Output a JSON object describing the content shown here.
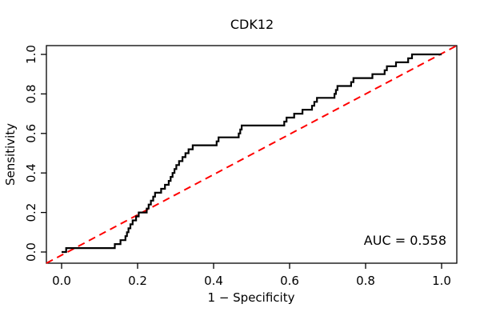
{
  "title": "CDK12",
  "axes": {
    "x": {
      "label": "1 − Specificity",
      "ticks": [
        "0.0",
        "0.2",
        "0.4",
        "0.6",
        "0.8",
        "1.0"
      ],
      "tick_values": [
        0,
        0.2,
        0.4,
        0.6,
        0.8,
        1.0
      ]
    },
    "y": {
      "label": "Sensitivity",
      "ticks": [
        "0.0",
        "0.2",
        "0.4",
        "0.6",
        "0.8",
        "1.0"
      ],
      "tick_values": [
        0,
        0.2,
        0.4,
        0.6,
        0.8,
        1.0
      ]
    }
  },
  "annotation": {
    "auc_label": "AUC = 0.558"
  },
  "colors": {
    "curve": "#000000",
    "diagonal": "#FF0000",
    "box": "#000000",
    "text": "#000000",
    "background": "#FFFFFF"
  },
  "chart_data": {
    "type": "line",
    "subtype": "roc-step-curve",
    "title": "CDK12",
    "xlabel": "1 − Specificity",
    "ylabel": "Sensitivity",
    "xlim": [
      0,
      1
    ],
    "ylim": [
      0,
      1
    ],
    "grid": false,
    "auc": 0.558,
    "diagonal_reference": {
      "from": [
        0,
        0
      ],
      "to": [
        1,
        1
      ],
      "style": "dashed",
      "color": "#FF0000"
    },
    "series": [
      {
        "name": "ROC curve (CDK12)",
        "color": "#000000",
        "style": "step",
        "step_points": [
          [
            0.0,
            0.0
          ],
          [
            0.012,
            0.02
          ],
          [
            0.14,
            0.04
          ],
          [
            0.155,
            0.06
          ],
          [
            0.168,
            0.08
          ],
          [
            0.172,
            0.1
          ],
          [
            0.176,
            0.12
          ],
          [
            0.181,
            0.14
          ],
          [
            0.187,
            0.16
          ],
          [
            0.196,
            0.18
          ],
          [
            0.203,
            0.2
          ],
          [
            0.224,
            0.22
          ],
          [
            0.229,
            0.24
          ],
          [
            0.235,
            0.26
          ],
          [
            0.241,
            0.28
          ],
          [
            0.246,
            0.3
          ],
          [
            0.262,
            0.32
          ],
          [
            0.272,
            0.34
          ],
          [
            0.282,
            0.36
          ],
          [
            0.287,
            0.38
          ],
          [
            0.292,
            0.4
          ],
          [
            0.297,
            0.42
          ],
          [
            0.302,
            0.44
          ],
          [
            0.309,
            0.46
          ],
          [
            0.318,
            0.48
          ],
          [
            0.326,
            0.5
          ],
          [
            0.334,
            0.52
          ],
          [
            0.345,
            0.54
          ],
          [
            0.408,
            0.56
          ],
          [
            0.413,
            0.58
          ],
          [
            0.466,
            0.6
          ],
          [
            0.47,
            0.62
          ],
          [
            0.474,
            0.64
          ],
          [
            0.586,
            0.66
          ],
          [
            0.592,
            0.68
          ],
          [
            0.612,
            0.7
          ],
          [
            0.634,
            0.72
          ],
          [
            0.659,
            0.74
          ],
          [
            0.665,
            0.76
          ],
          [
            0.672,
            0.78
          ],
          [
            0.718,
            0.8
          ],
          [
            0.722,
            0.82
          ],
          [
            0.726,
            0.84
          ],
          [
            0.762,
            0.86
          ],
          [
            0.768,
            0.88
          ],
          [
            0.818,
            0.9
          ],
          [
            0.85,
            0.92
          ],
          [
            0.856,
            0.94
          ],
          [
            0.88,
            0.96
          ],
          [
            0.912,
            0.98
          ],
          [
            0.922,
            1.0
          ],
          [
            1.0,
            1.0
          ]
        ]
      }
    ]
  }
}
